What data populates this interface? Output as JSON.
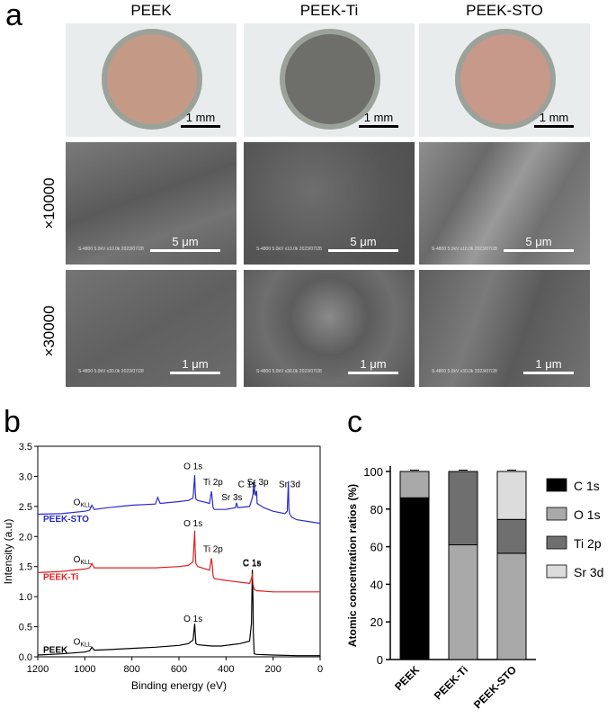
{
  "panels": {
    "a": "a",
    "b": "b",
    "c": "c"
  },
  "panel_a": {
    "columns": [
      "PEEK",
      "PEEK-Ti",
      "PEEK-STO"
    ],
    "rows": [
      "×10000",
      "×30000"
    ],
    "photo_scale": "1 mm",
    "sem_scale_row1": "5 μm",
    "sem_scale_row2": "1 μm",
    "sem_meta_row1": "S-4800 5.0kV x10.0k 2023/07/28",
    "sem_meta_row2": "S-4800 5.0kV x30.0k 2023/07/28",
    "disk_colors": [
      "#c49a86",
      "#6e6e6a",
      "#c6998a"
    ]
  },
  "chart_data": [
    {
      "type": "line",
      "xlabel": "Binding energy (eV)",
      "ylabel": "Intensity (a.u)",
      "xlim": [
        1200,
        0
      ],
      "ylim": [
        0,
        3.5
      ],
      "xticks": [
        1200,
        1000,
        800,
        600,
        400,
        200,
        0
      ],
      "yticks": [
        0.0,
        0.5,
        1.0,
        1.5,
        2.0,
        2.5,
        3.0,
        3.5
      ],
      "series": [
        {
          "name": "PEEK",
          "color": "#000000",
          "x": [
            1200,
            1100,
            1000,
            980,
            970,
            960,
            900,
            800,
            700,
            600,
            560,
            540,
            533,
            531,
            528,
            520,
            460,
            420,
            380,
            340,
            300,
            292,
            288,
            285,
            284,
            280,
            270,
            200,
            100,
            0
          ],
          "y": [
            0.03,
            0.05,
            0.08,
            0.1,
            0.16,
            0.11,
            0.12,
            0.14,
            0.16,
            0.19,
            0.22,
            0.28,
            0.55,
            0.38,
            0.22,
            0.2,
            0.18,
            0.18,
            0.2,
            0.22,
            0.26,
            0.55,
            1.45,
            0.9,
            0.4,
            0.05,
            0.04,
            0.03,
            0.02,
            0.02
          ]
        },
        {
          "name": "PEEK-Ti",
          "color": "#e02020",
          "x": [
            1200,
            1100,
            1000,
            980,
            970,
            960,
            900,
            800,
            700,
            600,
            560,
            540,
            533,
            531,
            528,
            520,
            470,
            462,
            458,
            455,
            450,
            400,
            340,
            300,
            292,
            288,
            285,
            280,
            270,
            200,
            100,
            0
          ],
          "y": [
            1.4,
            1.42,
            1.46,
            1.48,
            1.55,
            1.48,
            1.48,
            1.48,
            1.48,
            1.5,
            1.52,
            1.58,
            2.1,
            1.75,
            1.55,
            1.5,
            1.44,
            1.64,
            1.5,
            1.35,
            1.3,
            1.27,
            1.24,
            1.22,
            1.3,
            1.38,
            1.2,
            1.12,
            1.1,
            1.08,
            1.08,
            1.08
          ]
        },
        {
          "name": "PEEK-STO",
          "color": "#2b2bd0",
          "x": [
            1200,
            1100,
            1000,
            980,
            970,
            960,
            900,
            800,
            700,
            690,
            680,
            600,
            560,
            540,
            533,
            531,
            528,
            520,
            470,
            462,
            458,
            455,
            450,
            400,
            360,
            355,
            350,
            300,
            290,
            285,
            282,
            275,
            270,
            268,
            240,
            200,
            150,
            140,
            135,
            133,
            130,
            120,
            100,
            50,
            0
          ],
          "y": [
            2.37,
            2.38,
            2.42,
            2.44,
            2.52,
            2.45,
            2.48,
            2.52,
            2.54,
            2.65,
            2.55,
            2.58,
            2.6,
            2.64,
            3.02,
            2.75,
            2.62,
            2.6,
            2.55,
            2.75,
            2.6,
            2.48,
            2.45,
            2.45,
            2.48,
            2.56,
            2.48,
            2.5,
            2.62,
            2.7,
            2.9,
            2.68,
            2.76,
            2.55,
            2.48,
            2.42,
            2.38,
            2.42,
            2.92,
            2.48,
            2.38,
            2.32,
            2.28,
            2.25,
            2.22
          ]
        }
      ],
      "annotations": [
        {
          "text": "O 1s",
          "x": 540,
          "y": 3.12
        },
        {
          "text": "Ti 2p",
          "x": 455,
          "y": 2.86
        },
        {
          "text": "C 1s",
          "x": 310,
          "y": 2.82
        },
        {
          "text": "Sr 3p",
          "x": 265,
          "y": 2.86
        },
        {
          "text": "Sr 3d",
          "x": 130,
          "y": 2.82
        },
        {
          "text": "Sr 3s",
          "x": 375,
          "y": 2.6
        },
        {
          "text": "O 1s",
          "x": 540,
          "y": 2.17
        },
        {
          "text": "Ti 2p",
          "x": 455,
          "y": 1.74
        },
        {
          "text": "C 1s",
          "x": 290,
          "y": 1.5
        },
        {
          "text": "O 1s",
          "x": 540,
          "y": 0.58
        },
        {
          "text": "C 1s",
          "x": 290,
          "y": 1.52
        }
      ],
      "okll_labels": [
        {
          "base": "O",
          "sub": "KLL",
          "x": 1010,
          "y": 2.52
        },
        {
          "base": "O",
          "sub": "KLL",
          "x": 1010,
          "y": 1.57
        },
        {
          "base": "O",
          "sub": "KLL",
          "x": 1010,
          "y": 0.2
        }
      ],
      "series_labels": [
        "PEEK-STO",
        "PEEK-Ti",
        "PEEK"
      ]
    },
    {
      "type": "bar",
      "stacked": true,
      "ylabel": "Atomic concentration ratios (%)",
      "categories": [
        "PEEK",
        "PEEK-Ti",
        "PEEK-STO"
      ],
      "ylim": [
        0,
        100
      ],
      "yticks": [
        0,
        20,
        40,
        60,
        80,
        100
      ],
      "series": [
        {
          "name": "C 1s",
          "color": "#000000",
          "values": [
            86,
            0,
            0
          ]
        },
        {
          "name": "O 1s",
          "color": "#a9a9a9",
          "values": [
            14,
            61,
            56.5
          ]
        },
        {
          "name": "Ti 2p",
          "color": "#6f6f6f",
          "values": [
            0,
            39,
            18
          ]
        },
        {
          "name": "Sr 3d",
          "color": "#dcdcdc",
          "values": [
            0,
            0,
            25.5
          ]
        }
      ],
      "legend_position": "right"
    }
  ]
}
